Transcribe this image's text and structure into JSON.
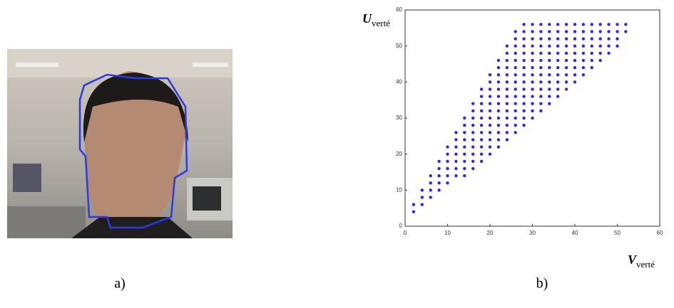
{
  "panels": [
    "a)",
    "b)"
  ],
  "chart_data": {
    "type": "scatter",
    "x_label": {
      "symbol": "V",
      "subscript": "verté"
    },
    "y_label": {
      "symbol": "U",
      "subscript": "verté"
    },
    "xlim": [
      0,
      60
    ],
    "ylim": [
      0,
      60
    ],
    "xticks": [
      0,
      10,
      20,
      30,
      40,
      50,
      60
    ],
    "yticks": [
      0,
      10,
      20,
      30,
      40,
      50,
      60
    ],
    "series": [
      {
        "color": "#2a2ae6",
        "x": [
          2,
          2,
          4,
          4,
          4,
          6,
          6,
          6,
          6,
          8,
          8,
          8,
          8,
          8,
          10,
          10,
          10,
          10,
          10,
          10,
          12,
          12,
          12,
          12,
          12,
          12,
          12,
          14,
          14,
          14,
          14,
          14,
          14,
          14,
          14,
          14,
          16,
          16,
          16,
          16,
          16,
          16,
          16,
          16,
          16,
          16,
          18,
          18,
          18,
          18,
          18,
          18,
          18,
          18,
          18,
          18,
          18,
          20,
          20,
          20,
          20,
          20,
          20,
          20,
          20,
          20,
          20,
          20,
          20,
          22,
          22,
          22,
          22,
          22,
          22,
          22,
          22,
          22,
          22,
          22,
          22,
          22,
          24,
          24,
          24,
          24,
          24,
          24,
          24,
          24,
          24,
          24,
          24,
          24,
          24,
          24,
          26,
          26,
          26,
          26,
          26,
          26,
          26,
          26,
          26,
          26,
          26,
          26,
          26,
          26,
          26,
          28,
          28,
          28,
          28,
          28,
          28,
          28,
          28,
          28,
          28,
          28,
          28,
          28,
          28,
          28,
          30,
          30,
          30,
          30,
          30,
          30,
          30,
          30,
          30,
          30,
          30,
          30,
          30,
          30,
          32,
          32,
          32,
          32,
          32,
          32,
          32,
          32,
          32,
          32,
          32,
          32,
          32,
          34,
          34,
          34,
          34,
          34,
          34,
          34,
          34,
          34,
          34,
          34,
          34,
          36,
          36,
          36,
          36,
          36,
          36,
          36,
          36,
          36,
          36,
          36,
          38,
          38,
          38,
          38,
          38,
          38,
          38,
          38,
          38,
          38,
          40,
          40,
          40,
          40,
          40,
          40,
          40,
          40,
          40,
          42,
          42,
          42,
          42,
          42,
          42,
          42,
          42,
          44,
          44,
          44,
          44,
          44,
          44,
          44,
          46,
          46,
          46,
          46,
          46,
          46,
          48,
          48,
          48,
          48,
          48,
          50,
          50,
          50,
          50,
          52,
          52
        ],
        "values": [
          4,
          6,
          6,
          8,
          10,
          8,
          10,
          12,
          14,
          10,
          12,
          14,
          16,
          18,
          12,
          14,
          16,
          18,
          20,
          22,
          14,
          16,
          18,
          20,
          22,
          24,
          26,
          14,
          16,
          18,
          20,
          22,
          24,
          26,
          28,
          30,
          16,
          18,
          20,
          22,
          24,
          26,
          28,
          30,
          32,
          34,
          18,
          20,
          22,
          24,
          26,
          28,
          30,
          32,
          34,
          36,
          38,
          20,
          22,
          24,
          26,
          28,
          30,
          32,
          34,
          36,
          38,
          40,
          42,
          22,
          24,
          26,
          28,
          30,
          32,
          34,
          36,
          38,
          40,
          42,
          44,
          46,
          24,
          26,
          28,
          30,
          32,
          34,
          36,
          38,
          40,
          42,
          44,
          46,
          48,
          50,
          26,
          28,
          30,
          32,
          34,
          36,
          38,
          40,
          42,
          44,
          46,
          48,
          50,
          52,
          54,
          28,
          30,
          32,
          34,
          36,
          38,
          40,
          42,
          44,
          46,
          48,
          50,
          52,
          54,
          56,
          30,
          32,
          34,
          36,
          38,
          40,
          42,
          44,
          46,
          48,
          50,
          52,
          54,
          56,
          32,
          34,
          36,
          38,
          40,
          42,
          44,
          46,
          48,
          50,
          52,
          54,
          56,
          34,
          36,
          38,
          40,
          42,
          44,
          46,
          48,
          50,
          52,
          54,
          56,
          36,
          38,
          40,
          42,
          44,
          46,
          48,
          50,
          52,
          54,
          56,
          38,
          40,
          42,
          44,
          46,
          48,
          50,
          52,
          54,
          56,
          40,
          42,
          44,
          46,
          48,
          50,
          52,
          54,
          56,
          42,
          44,
          46,
          48,
          50,
          52,
          54,
          56,
          44,
          46,
          48,
          50,
          52,
          54,
          56,
          46,
          48,
          50,
          52,
          54,
          56,
          48,
          50,
          52,
          54,
          56,
          50,
          52,
          54,
          56,
          54,
          56
        ]
      }
    ]
  }
}
